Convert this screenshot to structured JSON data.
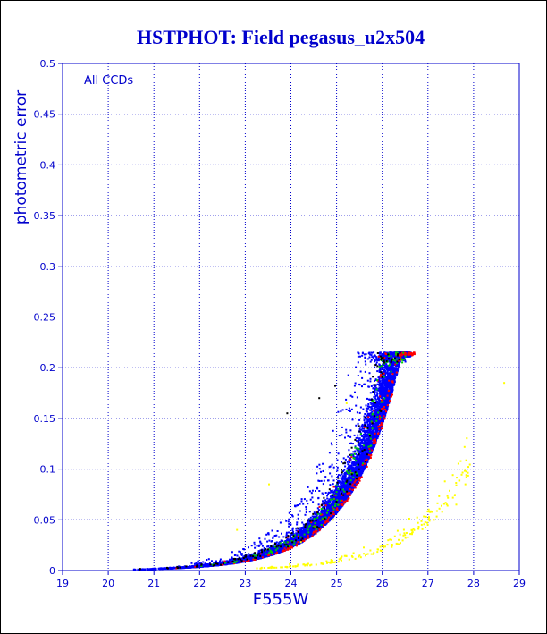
{
  "chart_data": {
    "type": "scatter",
    "title": "HSTPHOT: Field pegasus_u2x504",
    "xlabel": "F555W",
    "ylabel": "photometric error",
    "annotation": "All CCDs",
    "xlim": [
      19,
      29
    ],
    "ylim": [
      0,
      0.5
    ],
    "x_ticks": [
      19,
      20,
      21,
      22,
      23,
      24,
      25,
      26,
      27,
      28,
      29
    ],
    "y_ticks": [
      0,
      0.05,
      0.1,
      0.15,
      0.2,
      0.25,
      0.3,
      0.35,
      0.4,
      0.45,
      0.5
    ],
    "grid": true,
    "colors": {
      "axis": "#0000cc",
      "title": "#0000cc",
      "main": "#0000ff",
      "red": "#ff0000",
      "green": "#00cc00",
      "black": "#000000",
      "yellow": "#ffff00",
      "border": "#000000"
    },
    "series": [
      {
        "color": "#0000ff",
        "approx_count": 9000,
        "x_range": [
          20.4,
          26.6
        ],
        "trend_points": [
          [
            20.4,
            0.004
          ],
          [
            21.5,
            0.007
          ],
          [
            22.5,
            0.013
          ],
          [
            23.5,
            0.025
          ],
          [
            24.5,
            0.048
          ],
          [
            25.3,
            0.08
          ],
          [
            25.8,
            0.11
          ],
          [
            26.2,
            0.15
          ],
          [
            26.55,
            0.2
          ]
        ]
      },
      {
        "color": "#ff0000",
        "approx_count": 260,
        "x_range": [
          21.0,
          26.7
        ]
      },
      {
        "color": "#00cc00",
        "approx_count": 160,
        "x_range": [
          22.0,
          26.5
        ]
      },
      {
        "color": "#000000",
        "approx_count": 160,
        "x_range": [
          20.5,
          26.4
        ]
      },
      {
        "color": "#ffff00",
        "approx_count": 190,
        "x_range": [
          23.0,
          28.7
        ],
        "trend_points": [
          [
            23.0,
            0.002
          ],
          [
            24.5,
            0.005
          ],
          [
            25.5,
            0.01
          ],
          [
            26.5,
            0.025
          ],
          [
            27.0,
            0.04
          ],
          [
            27.5,
            0.06
          ],
          [
            27.9,
            0.085
          ],
          [
            28.65,
            0.185
          ]
        ]
      }
    ]
  }
}
